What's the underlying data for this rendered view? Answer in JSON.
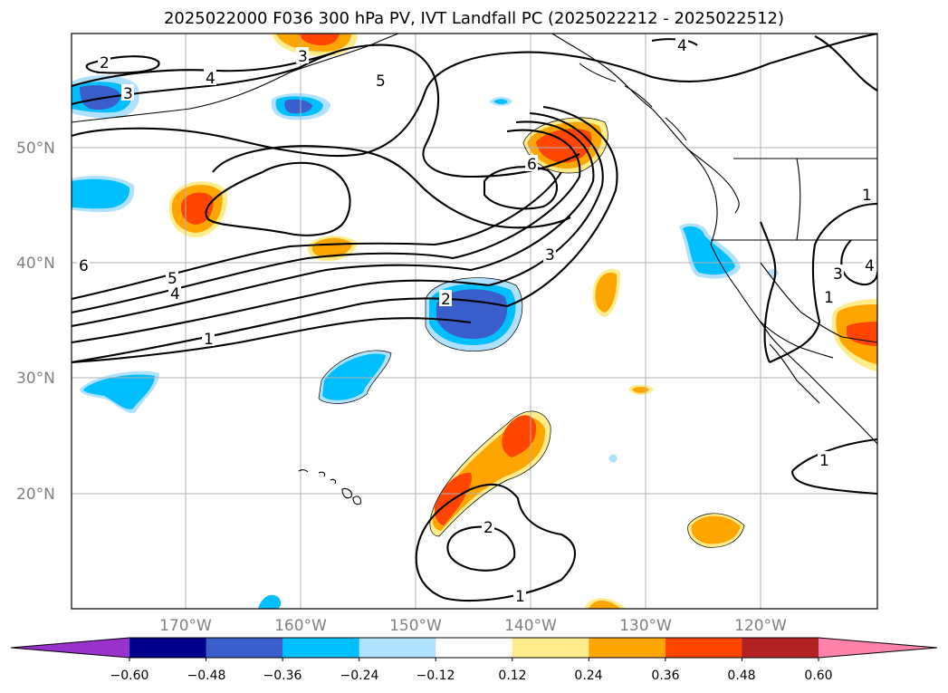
{
  "title": "2025022000 F036 300 hPa PV, IVT Landfall PC (2025022212 - 2025022512)",
  "lat_labels": [
    "50°N",
    "40°N",
    "30°N",
    "20°N"
  ],
  "lon_labels": [
    "170°W",
    "160°W",
    "150°W",
    "140°W",
    "130°W",
    "120°W"
  ],
  "colorbar": {
    "tick_labels": [
      "−0.60",
      "−0.48",
      "−0.36",
      "−0.24",
      "−0.12",
      "0.12",
      "0.24",
      "0.36",
      "0.48",
      "0.60"
    ],
    "colors": [
      "#9932CC",
      "#00008B",
      "#3A5FCD",
      "#00BFFF",
      "#B0E2FF",
      "#FFFFFF",
      "#FFEC8B",
      "#FFA500",
      "#FF4500",
      "#B22222",
      "#FF82AB"
    ]
  },
  "contour_labels": [
    "2",
    "3",
    "4",
    "5",
    "3",
    "6",
    "4",
    "5",
    "4",
    "2",
    "3",
    "6",
    "1",
    "1",
    "2",
    "1",
    "1",
    "3",
    "4",
    "1",
    "1"
  ]
}
